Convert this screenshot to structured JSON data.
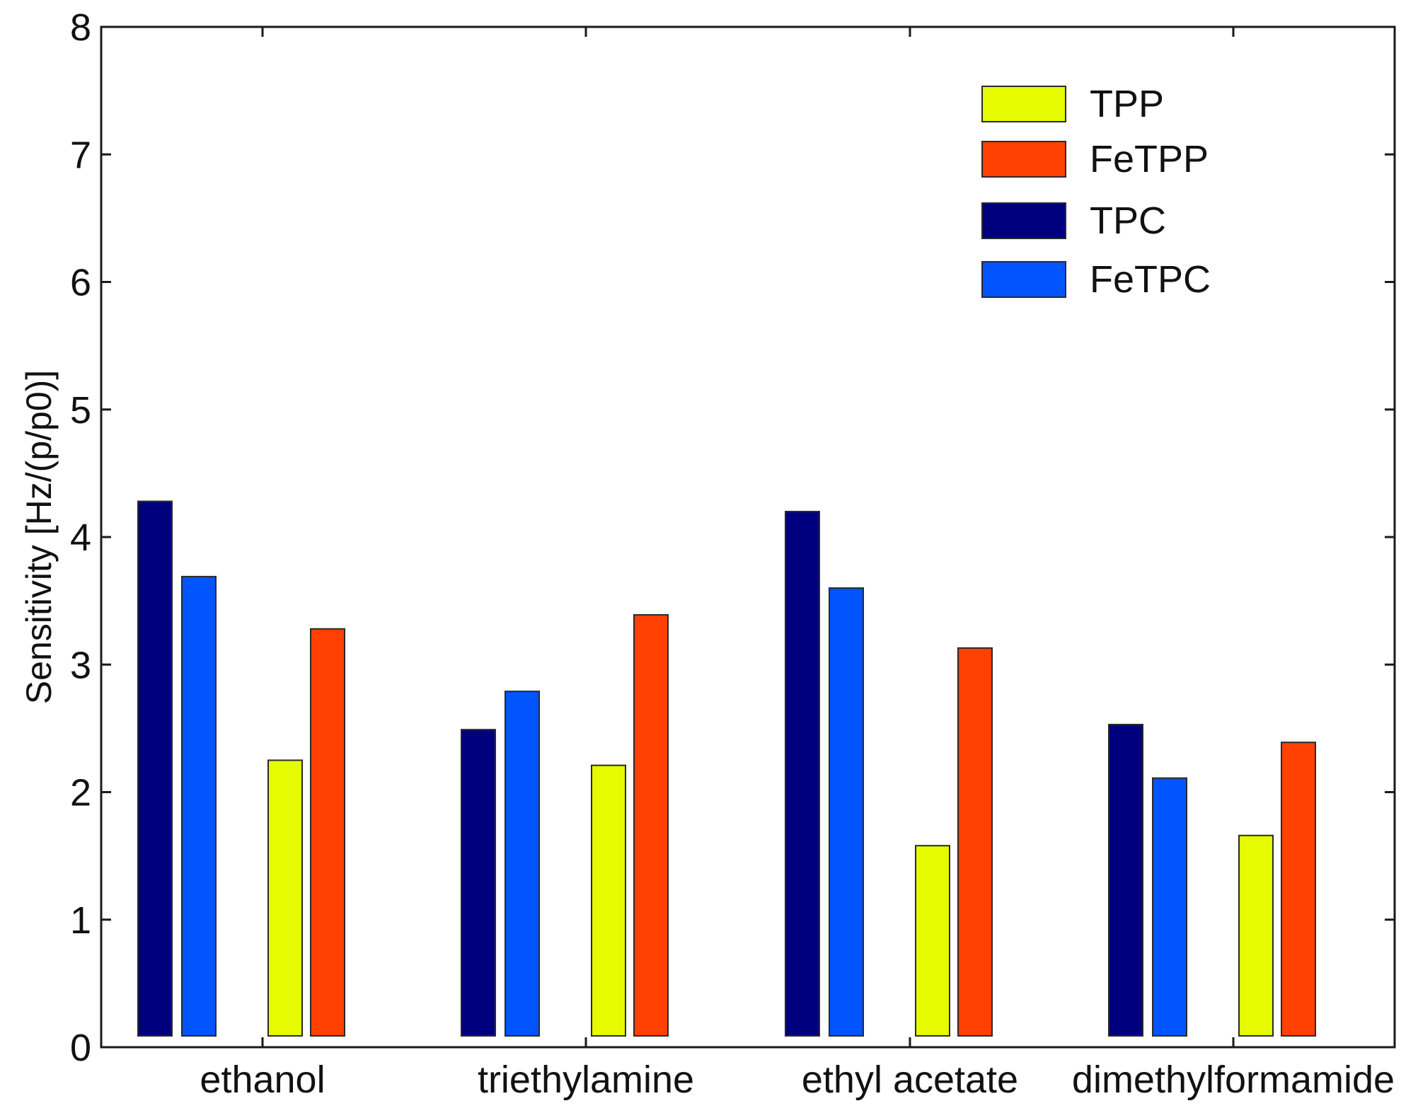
{
  "chart_data": {
    "type": "bar",
    "title": "",
    "xlabel": "",
    "ylabel": "Sensitivity [Hz/(p/p0)]",
    "ylim": [
      0,
      8
    ],
    "yticks": [
      0,
      1,
      2,
      3,
      4,
      5,
      6,
      7,
      8
    ],
    "grid": false,
    "legend_position": "top-right",
    "categories": [
      "ethanol",
      "triethylamine",
      "ethyl acetate",
      "dimethylformamide"
    ],
    "bar_order": [
      "TPC",
      "FeTPC",
      "TPP",
      "FeTPP"
    ],
    "series": [
      {
        "name": "TPP",
        "color": "#e6fa00",
        "values": [
          2.25,
          2.21,
          1.58,
          1.66
        ]
      },
      {
        "name": "FeTPP",
        "color": "#ff4000",
        "values": [
          3.28,
          3.39,
          3.13,
          2.39
        ]
      },
      {
        "name": "TPC",
        "color": "#00007f",
        "values": [
          4.28,
          2.49,
          4.2,
          2.53
        ]
      },
      {
        "name": "FeTPC",
        "color": "#0055ff",
        "values": [
          3.69,
          2.79,
          3.6,
          2.11
        ]
      }
    ]
  }
}
